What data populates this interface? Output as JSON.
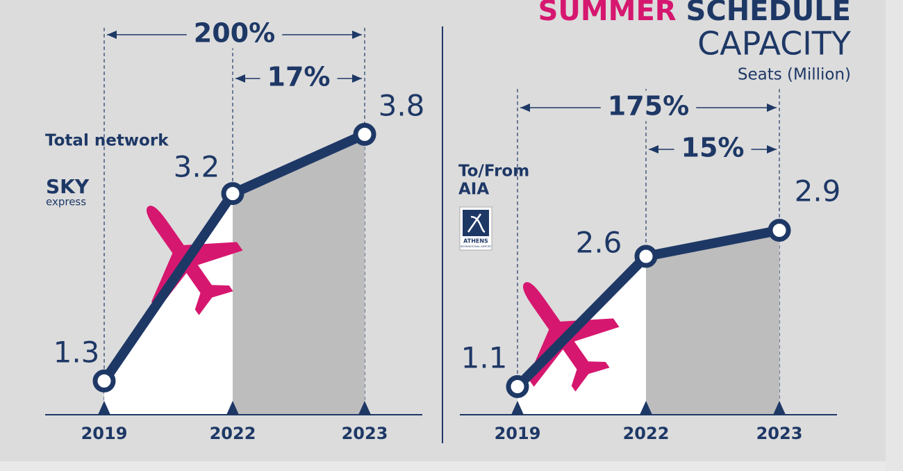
{
  "title_part1": "SUMMER",
  "title_part2": "SCHEDULE",
  "subtitle": "CAPACITY",
  "unit": "Seats (Million)",
  "chart_data": [
    {
      "type": "line",
      "label_lines": [
        "Total network"
      ],
      "logo": "SKY",
      "logo_sub": "express",
      "categories": [
        "2019",
        "2022",
        "2023"
      ],
      "values": [
        1.3,
        3.2,
        3.8
      ],
      "color": "#1e3866",
      "changes": [
        "200%",
        "17%"
      ]
    },
    {
      "type": "line",
      "label_lines": [
        "To/From",
        "AIA"
      ],
      "logo": "ATHENS",
      "logo_sub": "INTERNATIONAL AIRPORT",
      "categories": [
        "2019",
        "2022",
        "2023"
      ],
      "values": [
        1.1,
        2.6,
        2.9
      ],
      "color": "#1e3866",
      "changes": [
        "175%",
        "15%"
      ]
    }
  ]
}
